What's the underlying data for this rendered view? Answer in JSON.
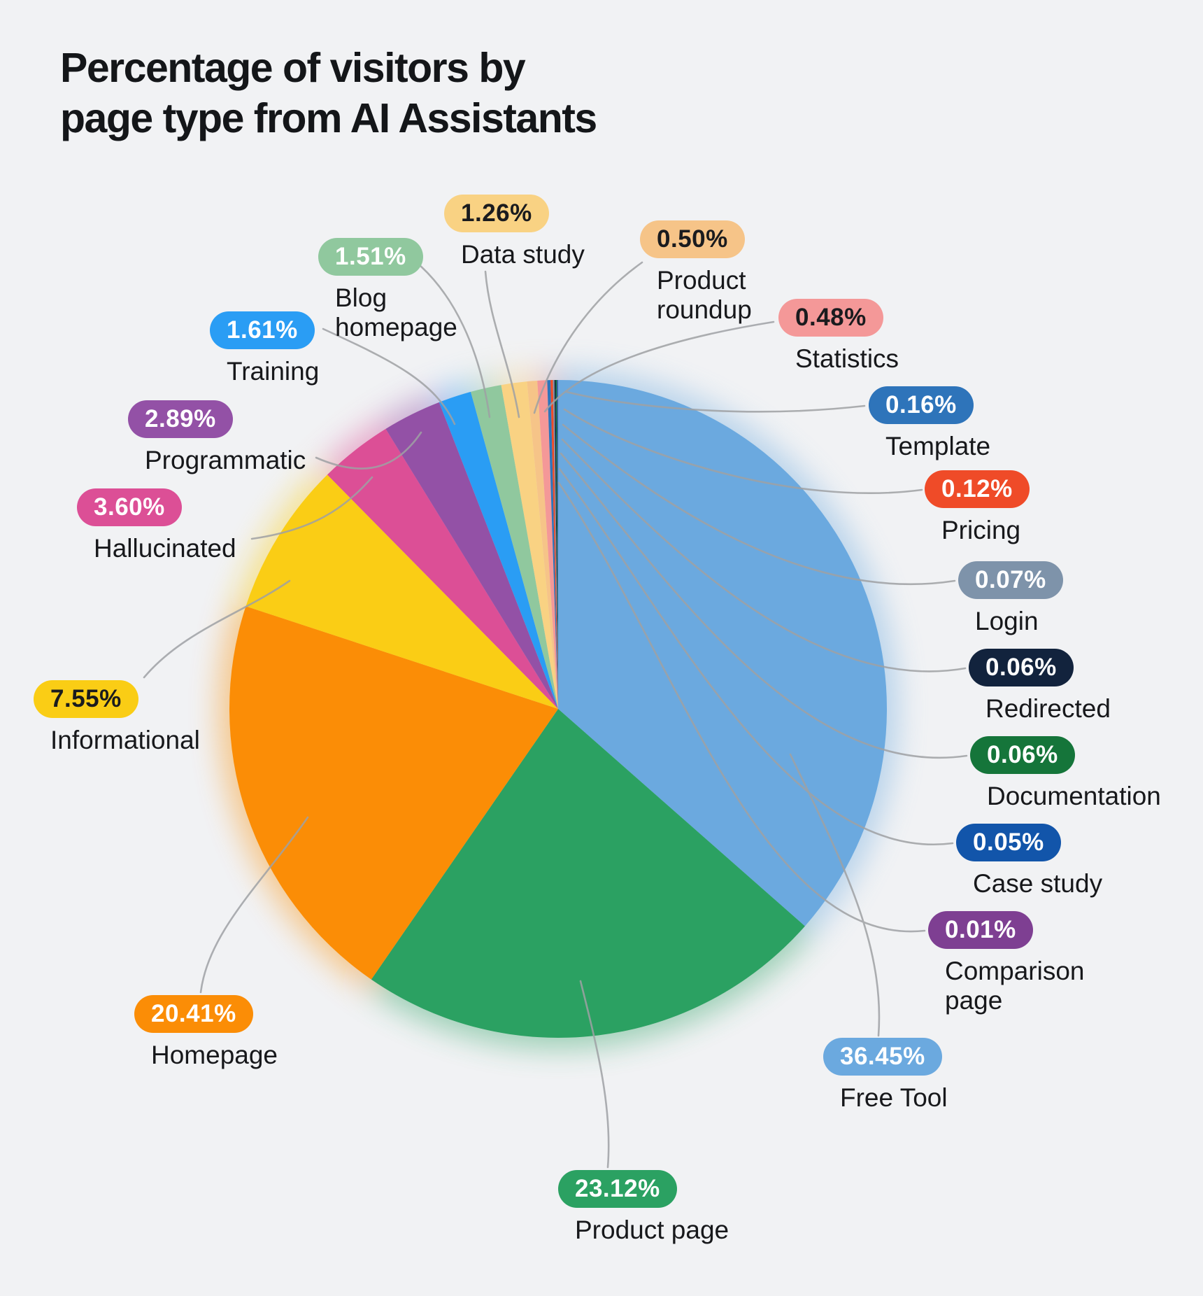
{
  "title": {
    "line1": "Percentage of visitors by",
    "line2": "page type from AI Assistants"
  },
  "colors": {
    "background": "#F1F2F4",
    "title_text": "#141619",
    "label_text": "#17181B",
    "connector": "#9FA1A4"
  },
  "chart_data": {
    "type": "pie",
    "title": "Percentage of visitors by page type from AI Assistants",
    "unit": "%",
    "legend_position": "callouts-around-pie",
    "slices": [
      {
        "id": "free-tool",
        "label": "Free Tool",
        "value": 36.45,
        "display": "36.45%",
        "color": "#6BA9DF",
        "badge_text_color": "#FFFFFF"
      },
      {
        "id": "product-page",
        "label": "Product page",
        "value": 23.12,
        "display": "23.12%",
        "color": "#2BA162",
        "badge_text_color": "#FFFFFF"
      },
      {
        "id": "homepage",
        "label": "Homepage",
        "value": 20.41,
        "display": "20.41%",
        "color": "#FB8D06",
        "badge_text_color": "#FFFFFF"
      },
      {
        "id": "informational",
        "label": "Informational",
        "value": 7.55,
        "display": "7.55%",
        "color": "#FACD15",
        "badge_text_color": "#1A1B1E"
      },
      {
        "id": "hallucinated",
        "label": "Hallucinated",
        "value": 3.6,
        "display": "3.60%",
        "color": "#DC4F96",
        "badge_text_color": "#FFFFFF"
      },
      {
        "id": "programmatic",
        "label": "Programmatic",
        "value": 2.89,
        "display": "2.89%",
        "color": "#9351A6",
        "badge_text_color": "#FFFFFF"
      },
      {
        "id": "training",
        "label": "Training",
        "value": 1.61,
        "display": "1.61%",
        "color": "#2A9DF4",
        "badge_text_color": "#FFFFFF"
      },
      {
        "id": "blog-homepage",
        "label": "Blog homepage",
        "value": 1.51,
        "display": "1.51%",
        "color": "#90C89E",
        "badge_text_color": "#FFFFFF"
      },
      {
        "id": "data-study",
        "label": "Data study",
        "value": 1.26,
        "display": "1.26%",
        "color": "#F9D283",
        "badge_text_color": "#1A1B1E"
      },
      {
        "id": "product-roundup",
        "label": "Product roundup",
        "value": 0.5,
        "display": "0.50%",
        "color": "#F6C488",
        "badge_text_color": "#1A1B1E"
      },
      {
        "id": "statistics",
        "label": "Statistics",
        "value": 0.48,
        "display": "0.48%",
        "color": "#F49898",
        "badge_text_color": "#1A1B1E"
      },
      {
        "id": "template",
        "label": "Template",
        "value": 0.16,
        "display": "0.16%",
        "color": "#2E74BA",
        "badge_text_color": "#FFFFFF"
      },
      {
        "id": "pricing",
        "label": "Pricing",
        "value": 0.12,
        "display": "0.12%",
        "color": "#EF4B28",
        "badge_text_color": "#FFFFFF"
      },
      {
        "id": "login",
        "label": "Login",
        "value": 0.07,
        "display": "0.07%",
        "color": "#7E93AA",
        "badge_text_color": "#FFFFFF"
      },
      {
        "id": "redirected",
        "label": "Redirected",
        "value": 0.06,
        "display": "0.06%",
        "color": "#12233D",
        "badge_text_color": "#FFFFFF"
      },
      {
        "id": "documentation",
        "label": "Documentation",
        "value": 0.06,
        "display": "0.06%",
        "color": "#15753A",
        "badge_text_color": "#FFFFFF"
      },
      {
        "id": "case-study",
        "label": "Case study",
        "value": 0.05,
        "display": "0.05%",
        "color": "#1255AA",
        "badge_text_color": "#FFFFFF"
      },
      {
        "id": "comparison-page",
        "label": "Comparison page",
        "value": 0.01,
        "display": "0.01%",
        "color": "#7E3F92",
        "badge_text_color": "#FFFFFF"
      }
    ]
  }
}
